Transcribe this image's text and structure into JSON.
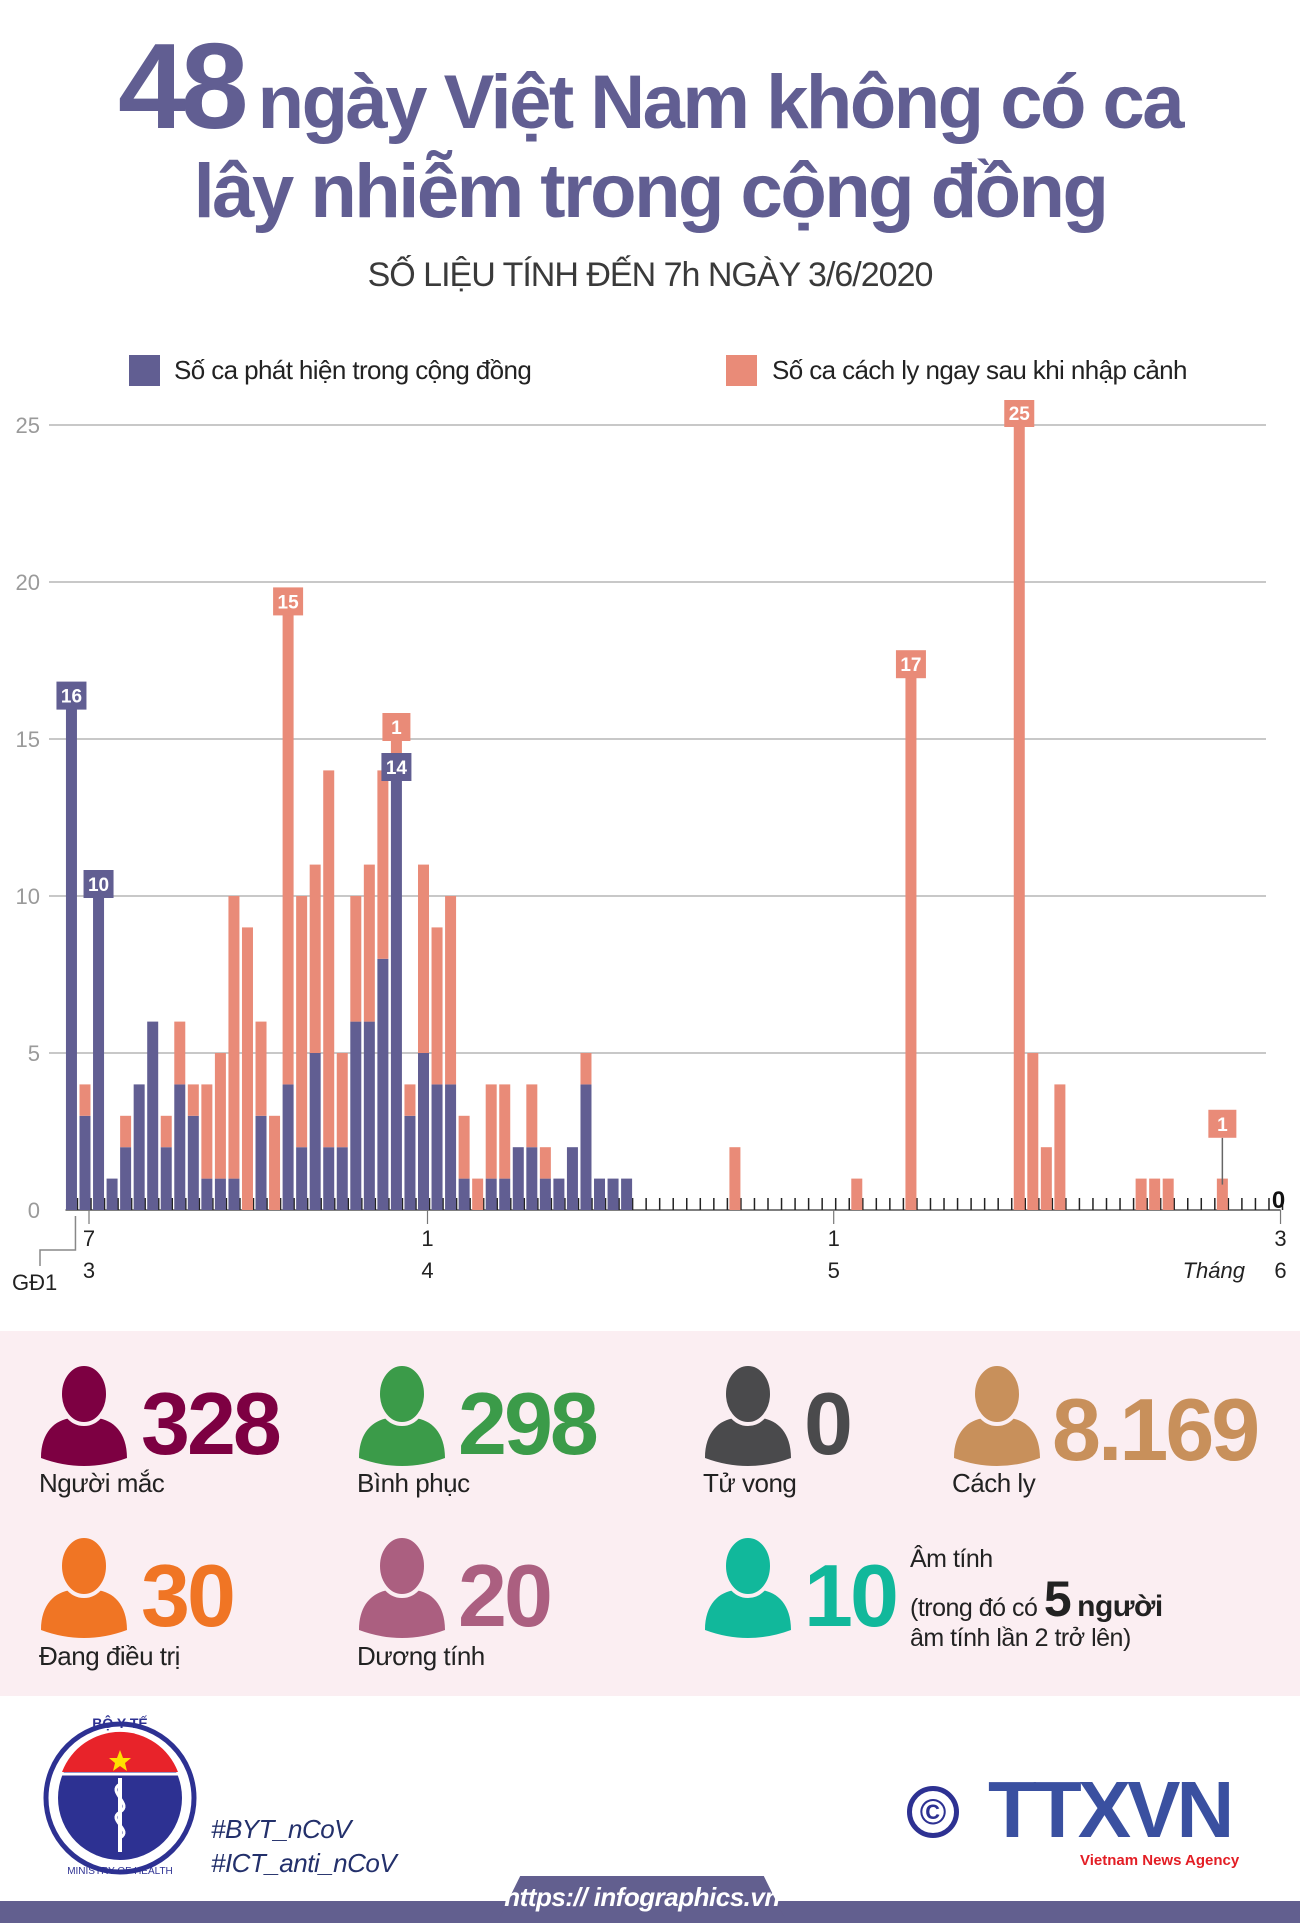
{
  "header": {
    "title_number": "48",
    "title_rest_line1": "ngày Việt Nam không có ca",
    "title_line2": "lây nhiễm trong cộng đồng",
    "subtitle": "SỐ LIỆU TÍNH ĐẾN 7h NGÀY 3/6/2020"
  },
  "legend": {
    "community": {
      "label": "Số ca phát hiện trong cộng đồng",
      "color": "#615e92"
    },
    "quarantine": {
      "label": "Số ca cách ly ngay sau khi nhập cảnh",
      "color": "#e98b78"
    }
  },
  "chart_data": {
    "type": "bar",
    "stacked": true,
    "ylim": [
      0,
      25
    ],
    "yticks": [
      "0",
      "5",
      "10",
      "15",
      "20",
      "25"
    ],
    "grid": true,
    "legend_position": "top",
    "x_range": [
      "7/3",
      "3/6"
    ],
    "xlabel": "Tháng",
    "first_bar_label": "GĐ1",
    "xtick_labels": [
      {
        "date": "7/3",
        "day": "7",
        "month": "3"
      },
      {
        "date": "1/4",
        "day": "1",
        "month": "4"
      },
      {
        "date": "1/5",
        "day": "1",
        "month": "5"
      },
      {
        "date": "3/6",
        "day": "3",
        "month": "6"
      }
    ],
    "series": [
      {
        "key": "community",
        "name": "Số ca phát hiện trong cộng đồng",
        "color": "#615e92"
      },
      {
        "key": "quarantine",
        "name": "Số ca cách ly ngay sau khi nhập cảnh",
        "color": "#e98b78"
      }
    ],
    "points": [
      {
        "date": "GĐ1",
        "community": 16,
        "quarantine": 0
      },
      {
        "date": "7/3",
        "community": 3,
        "quarantine": 1
      },
      {
        "date": "8/3",
        "community": 10,
        "quarantine": 0
      },
      {
        "date": "9/3",
        "community": 1,
        "quarantine": 0
      },
      {
        "date": "10/3",
        "community": 2,
        "quarantine": 1
      },
      {
        "date": "11/3",
        "community": 4,
        "quarantine": 0
      },
      {
        "date": "12/3",
        "community": 6,
        "quarantine": 0
      },
      {
        "date": "13/3",
        "community": 2,
        "quarantine": 1
      },
      {
        "date": "14/3",
        "community": 4,
        "quarantine": 2
      },
      {
        "date": "15/3",
        "community": 3,
        "quarantine": 1
      },
      {
        "date": "16/3",
        "community": 1,
        "quarantine": 3
      },
      {
        "date": "17/3",
        "community": 1,
        "quarantine": 4
      },
      {
        "date": "18/3",
        "community": 1,
        "quarantine": 9
      },
      {
        "date": "19/3",
        "community": 0,
        "quarantine": 9
      },
      {
        "date": "20/3",
        "community": 3,
        "quarantine": 3
      },
      {
        "date": "21/3",
        "community": 0,
        "quarantine": 3
      },
      {
        "date": "22/3",
        "community": 4,
        "quarantine": 15
      },
      {
        "date": "23/3",
        "community": 2,
        "quarantine": 8
      },
      {
        "date": "24/3",
        "community": 5,
        "quarantine": 6
      },
      {
        "date": "25/3",
        "community": 2,
        "quarantine": 12
      },
      {
        "date": "26/3",
        "community": 2,
        "quarantine": 3
      },
      {
        "date": "27/3",
        "community": 6,
        "quarantine": 4
      },
      {
        "date": "28/3",
        "community": 6,
        "quarantine": 5
      },
      {
        "date": "29/3",
        "community": 8,
        "quarantine": 6
      },
      {
        "date": "30/3",
        "community": 14,
        "quarantine": 1
      },
      {
        "date": "31/3",
        "community": 3,
        "quarantine": 1
      },
      {
        "date": "1/4",
        "community": 5,
        "quarantine": 6
      },
      {
        "date": "2/4",
        "community": 4,
        "quarantine": 5
      },
      {
        "date": "3/4",
        "community": 4,
        "quarantine": 6
      },
      {
        "date": "4/4",
        "community": 1,
        "quarantine": 2
      },
      {
        "date": "5/4",
        "community": 0,
        "quarantine": 1
      },
      {
        "date": "6/4",
        "community": 1,
        "quarantine": 3
      },
      {
        "date": "7/4",
        "community": 1,
        "quarantine": 3
      },
      {
        "date": "8/4",
        "community": 2,
        "quarantine": 0
      },
      {
        "date": "9/4",
        "community": 2,
        "quarantine": 2
      },
      {
        "date": "10/4",
        "community": 1,
        "quarantine": 1
      },
      {
        "date": "11/4",
        "community": 1,
        "quarantine": 0
      },
      {
        "date": "12/4",
        "community": 2,
        "quarantine": 0
      },
      {
        "date": "13/4",
        "community": 4,
        "quarantine": 1
      },
      {
        "date": "14/4",
        "community": 1,
        "quarantine": 0
      },
      {
        "date": "15/4",
        "community": 1,
        "quarantine": 0
      },
      {
        "date": "16/4",
        "community": 1,
        "quarantine": 0
      },
      {
        "date": "24/4",
        "community": 0,
        "quarantine": 2
      },
      {
        "date": "3/5",
        "community": 0,
        "quarantine": 1
      },
      {
        "date": "7/5",
        "community": 0,
        "quarantine": 17
      },
      {
        "date": "15/5",
        "community": 0,
        "quarantine": 25
      },
      {
        "date": "16/5",
        "community": 0,
        "quarantine": 5
      },
      {
        "date": "17/5",
        "community": 0,
        "quarantine": 2
      },
      {
        "date": "18/5",
        "community": 0,
        "quarantine": 4
      },
      {
        "date": "24/5",
        "community": 0,
        "quarantine": 1
      },
      {
        "date": "25/5",
        "community": 0,
        "quarantine": 1
      },
      {
        "date": "26/5",
        "community": 0,
        "quarantine": 1
      },
      {
        "date": "30/5",
        "community": 0,
        "quarantine": 1
      }
    ],
    "data_labels": [
      {
        "date": "GĐ1",
        "series": "community",
        "text": "16"
      },
      {
        "date": "8/3",
        "series": "community",
        "text": "10"
      },
      {
        "date": "22/3",
        "series": "quarantine",
        "text": "15"
      },
      {
        "date": "30/3",
        "series": "quarantine",
        "text": "1"
      },
      {
        "date": "30/3",
        "series": "community",
        "text": "14"
      },
      {
        "date": "7/5",
        "series": "quarantine",
        "text": "17"
      },
      {
        "date": "15/5",
        "series": "quarantine",
        "text": "25"
      },
      {
        "date": "30/5",
        "series": "quarantine",
        "text": "1"
      }
    ],
    "end_label": {
      "date": "3/6",
      "text": "0"
    }
  },
  "stats": {
    "infected": {
      "value": "328",
      "label": "Người mắc",
      "color": "#7d0042"
    },
    "recovered": {
      "value": "298",
      "label": "Bình phục",
      "color": "#3b9b49"
    },
    "deaths": {
      "value": "0",
      "label": "Tử vong",
      "color": "#4a4a4c"
    },
    "quarantined": {
      "value": "8.169",
      "label": "Cách ly",
      "color": "#c8905b"
    },
    "treating": {
      "value": "30",
      "label": "Đang điều trị",
      "color": "#f07524"
    },
    "positive": {
      "value": "20",
      "label": "Dương tính",
      "color": "#ab5f80"
    },
    "negative": {
      "value": "10",
      "label_line1": "Âm tính",
      "label_line2_pre": "(trong đó có",
      "label_count": "5",
      "label_unit": "người",
      "label_line3": "âm tính lần 2 trở lên)",
      "color": "#11b89b"
    }
  },
  "footer": {
    "moh_logo_top": "BỘ Y TẾ",
    "moh_logo_bottom": "MINISTRY OF HEALTH",
    "hashtags": [
      "#BYT_nCoV",
      "#ICT_anti_nCoV"
    ],
    "copyright_symbol": "©",
    "agency_logo": "TTXVN",
    "agency_name": "Vietnam News Agency",
    "url": "https:// infographics.vn"
  }
}
